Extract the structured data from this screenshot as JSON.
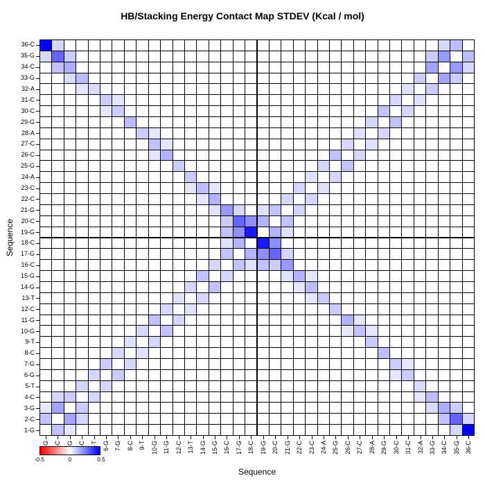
{
  "chart_data": {
    "type": "heatmap",
    "title": "HB/Stacking Energy Contact Map STDEV (Kcal / mol)",
    "xlabel": "Sequence",
    "ylabel": "Sequence",
    "categories": [
      "1-G",
      "2-C",
      "3-G",
      "4-C",
      "5-T",
      "6-G",
      "7-G",
      "8-C",
      "9-T",
      "10-G",
      "11-G",
      "12-C",
      "13-T",
      "14-G",
      "15-G",
      "16-C",
      "17-G",
      "18-C",
      "19-G",
      "20-C",
      "21-G",
      "22-C",
      "23-C",
      "24-A",
      "25-G",
      "26-C",
      "27-C",
      "28-A",
      "29-G",
      "30-C",
      "31-C",
      "32-A",
      "33-G",
      "34-C",
      "35-G",
      "36-C"
    ],
    "symmetric": true,
    "value_range": [
      -0.5,
      0.5
    ],
    "grid": true,
    "divider_after_index": 18,
    "max_color": "#0000ff",
    "zero_color": "#ffffff",
    "min_color": "#ff0000",
    "cells": [
      [
        1,
        2,
        0.12
      ],
      [
        2,
        3,
        0.18
      ],
      [
        3,
        4,
        0.1
      ],
      [
        4,
        5,
        0.08
      ],
      [
        5,
        6,
        0.08
      ],
      [
        6,
        7,
        0.1
      ],
      [
        7,
        8,
        0.08
      ],
      [
        8,
        9,
        0.06
      ],
      [
        9,
        10,
        0.08
      ],
      [
        10,
        11,
        0.12
      ],
      [
        11,
        12,
        0.08
      ],
      [
        12,
        13,
        0.06
      ],
      [
        13,
        14,
        0.08
      ],
      [
        14,
        15,
        0.12
      ],
      [
        15,
        16,
        0.08
      ],
      [
        16,
        17,
        0.12
      ],
      [
        17,
        18,
        0.15
      ],
      [
        19,
        20,
        0.15
      ],
      [
        20,
        21,
        0.12
      ],
      [
        21,
        22,
        0.08
      ],
      [
        22,
        23,
        0.08
      ],
      [
        23,
        24,
        0.06
      ],
      [
        24,
        25,
        0.08
      ],
      [
        25,
        26,
        0.12
      ],
      [
        26,
        27,
        0.08
      ],
      [
        27,
        28,
        0.06
      ],
      [
        28,
        29,
        0.08
      ],
      [
        29,
        30,
        0.12
      ],
      [
        30,
        31,
        0.08
      ],
      [
        31,
        32,
        0.06
      ],
      [
        32,
        33,
        0.1
      ],
      [
        33,
        34,
        0.18
      ],
      [
        34,
        35,
        0.2
      ],
      [
        35,
        36,
        0.13
      ],
      [
        1,
        3,
        0.05
      ],
      [
        2,
        4,
        0.08
      ],
      [
        33,
        35,
        0.1
      ],
      [
        34,
        36,
        0.08
      ],
      [
        16,
        18,
        0.06
      ],
      [
        19,
        21,
        0.06
      ],
      [
        1,
        36,
        0.5
      ],
      [
        2,
        35,
        0.3
      ],
      [
        3,
        34,
        0.16
      ],
      [
        4,
        33,
        0.13
      ],
      [
        5,
        32,
        0.07
      ],
      [
        6,
        31,
        0.1
      ],
      [
        7,
        30,
        0.1
      ],
      [
        8,
        29,
        0.13
      ],
      [
        9,
        28,
        0.1
      ],
      [
        10,
        27,
        0.12
      ],
      [
        11,
        26,
        0.15
      ],
      [
        12,
        25,
        0.1
      ],
      [
        13,
        24,
        0.1
      ],
      [
        14,
        23,
        0.13
      ],
      [
        15,
        22,
        0.15
      ],
      [
        16,
        21,
        0.2
      ],
      [
        17,
        20,
        0.3
      ],
      [
        18,
        19,
        0.45
      ],
      [
        1,
        35,
        0.08
      ],
      [
        2,
        36,
        0.08
      ],
      [
        2,
        34,
        0.12
      ],
      [
        3,
        35,
        0.1
      ],
      [
        3,
        33,
        0.07
      ],
      [
        4,
        32,
        0.05
      ],
      [
        16,
        20,
        0.1
      ],
      [
        17,
        19,
        0.22
      ],
      [
        18,
        20,
        0.22
      ],
      [
        16,
        19,
        0.12
      ],
      [
        15,
        21,
        0.06
      ],
      [
        17,
        21,
        0.08
      ],
      [
        6,
        30,
        0.05
      ],
      [
        7,
        31,
        0.05
      ],
      [
        10,
        26,
        0.05
      ],
      [
        11,
        27,
        0.05
      ],
      [
        14,
        22,
        0.05
      ],
      [
        15,
        23,
        0.05
      ],
      [
        10,
        28,
        0.05
      ],
      [
        13,
        23,
        0.05
      ]
    ]
  },
  "colorbar": {
    "ticks": [
      "-0.5",
      "0",
      "0.5"
    ],
    "left_color": "#ff0000",
    "mid_color": "#ffffff",
    "right_color": "#0000ff"
  }
}
